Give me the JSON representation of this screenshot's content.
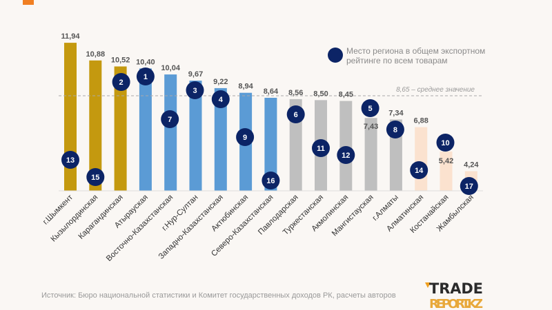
{
  "chart_data": {
    "type": "bar",
    "title": "",
    "xlabel": "",
    "ylabel": "",
    "ylim": [
      3,
      12.5
    ],
    "grid": false,
    "categories": [
      "г.Шымкент",
      "Кызылординская",
      "Карагандинская",
      "Атырауская",
      "Восточно-Казахстанская",
      "г.Нур-Султан",
      "Западно-Казахстанская",
      "Актюбинская",
      "Северо-Казахстанская",
      "Павлодарская",
      "Туркестанская",
      "Акмолинская",
      "Мангистауская",
      "г.Алматы",
      "Алматинская",
      "Костанайская",
      "Жамбылская"
    ],
    "values": [
      11.94,
      10.88,
      10.52,
      10.4,
      10.04,
      9.67,
      9.22,
      8.94,
      8.64,
      8.56,
      8.5,
      8.45,
      7.43,
      7.34,
      6.88,
      5.42,
      4.24
    ],
    "value_labels": [
      "11,94",
      "10,88",
      "10,52",
      "10,40",
      "10,04",
      "9,67",
      "9,22",
      "8,94",
      "8,64",
      "8,56",
      "8,50",
      "8,45",
      "7,43",
      "7,34",
      "6,88",
      "5,42",
      "4,24"
    ],
    "ranks": [
      13,
      15,
      2,
      1,
      7,
      3,
      4,
      9,
      16,
      6,
      11,
      12,
      5,
      8,
      14,
      10,
      17
    ],
    "bar_groups": [
      "gold",
      "gold",
      "gold",
      "blue",
      "blue",
      "blue",
      "blue",
      "blue",
      "blue",
      "grey",
      "grey",
      "grey",
      "grey",
      "grey",
      "peach",
      "peach",
      "peach"
    ],
    "average": {
      "value": 8.65,
      "label": "8,65 – среднее значение"
    },
    "legend": {
      "line1": "Место региона в  общем экспортном",
      "line2": "рейтинге по всем товарам",
      "placement": "top-right"
    }
  },
  "colors": {
    "gold": "#c4990f",
    "blue": "#5b9bd5",
    "grey": "#bfbfbf",
    "peach": "#fbe2cf",
    "rank_circle": "#0c2466",
    "accent": "#f07f22"
  },
  "source": "Источник: Бюро национальной статистики и Комитет государственных доходов РК, расчеты авторов",
  "logo": {
    "line1": "TRADE",
    "line2": "REPORT.KZ"
  }
}
